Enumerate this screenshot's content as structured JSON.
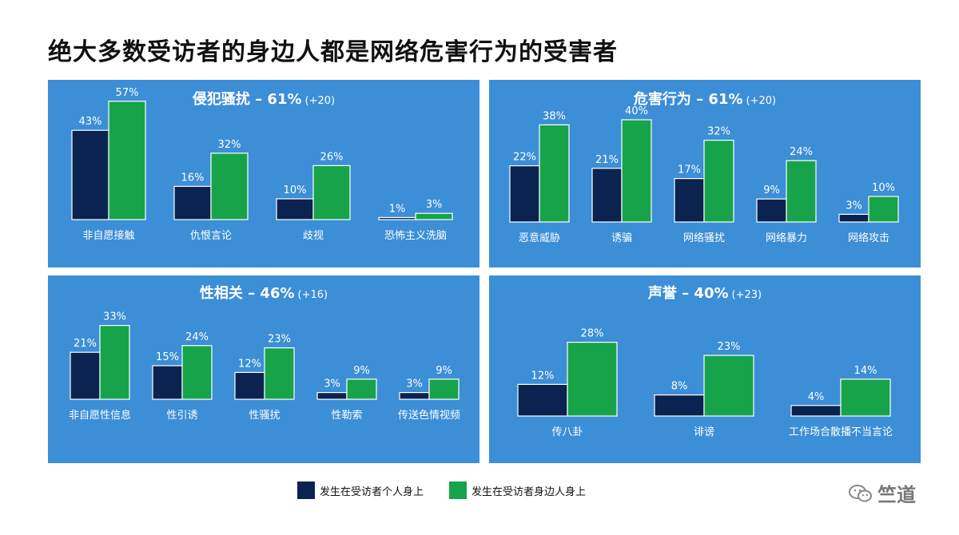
{
  "title": "绝大多数受访者的身边人都是网络危害行为的受害者",
  "colors": {
    "self": "#0b2350",
    "around": "#16a34a",
    "panel": "#3c8ed7"
  },
  "legend": {
    "self": "发生在受访者个人身上",
    "around": "发生在受访者身边人身上"
  },
  "watermark": {
    "text": "竺道",
    "icon": "wechat-icon"
  },
  "chart_data": [
    {
      "type": "bar",
      "title": "侵犯骚扰 – 61%",
      "delta": "(+20)",
      "categories": [
        "非自愿接触",
        "仇恨言论",
        "歧视",
        "恐怖主义洗脑"
      ],
      "series": [
        {
          "name": "发生在受访者个人身上",
          "values": [
            43,
            16,
            10,
            1
          ]
        },
        {
          "name": "发生在受访者身边人身上",
          "values": [
            57,
            32,
            26,
            3
          ]
        }
      ]
    },
    {
      "type": "bar",
      "title": "危害行为 – 61%",
      "delta": "(+20)",
      "categories": [
        "恶意威胁",
        "诱骗",
        "网络骚扰",
        "网络暴力",
        "网络攻击"
      ],
      "series": [
        {
          "name": "发生在受访者个人身上",
          "values": [
            22,
            21,
            17,
            9,
            3
          ]
        },
        {
          "name": "发生在受访者身边人身上",
          "values": [
            38,
            40,
            32,
            24,
            10
          ]
        }
      ]
    },
    {
      "type": "bar",
      "title": "性相关 – 46%",
      "delta": "(+16)",
      "categories": [
        "非自愿性信息",
        "性引诱",
        "性骚扰",
        "性勒索",
        "传送色情视频"
      ],
      "series": [
        {
          "name": "发生在受访者个人身上",
          "values": [
            21,
            15,
            12,
            3,
            3
          ]
        },
        {
          "name": "发生在受访者身边人身上",
          "values": [
            33,
            24,
            23,
            9,
            9
          ]
        }
      ]
    },
    {
      "type": "bar",
      "title": "声誉 – 40%",
      "delta": "(+23)",
      "categories": [
        "传八卦",
        "诽谤",
        "工作场合散播不当言论"
      ],
      "series": [
        {
          "name": "发生在受访者个人身上",
          "values": [
            12,
            8,
            4
          ]
        },
        {
          "name": "发生在受访者身边人身上",
          "values": [
            28,
            23,
            14
          ]
        }
      ]
    }
  ]
}
